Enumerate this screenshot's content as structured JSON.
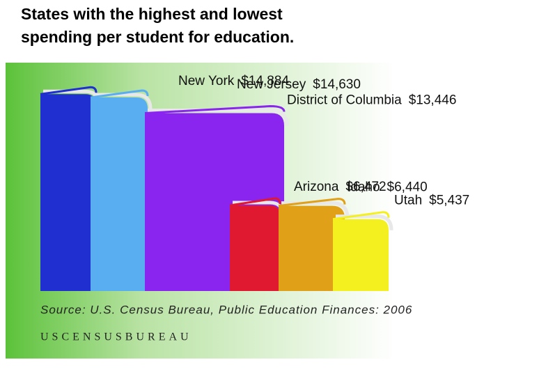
{
  "chart_data": {
    "type": "book",
    "title": "States with the highest and lowest spending per student for education.",
    "categories": [
      "New York",
      "New Jersey",
      "District of Columbia",
      "Arizona",
      "Idaho",
      "Utah"
    ],
    "values": [
      14884,
      14630,
      13446,
      6472,
      6440,
      5437
    ],
    "value_labels": [
      "$14,884",
      "$14,630",
      "$13,446",
      "$6,472",
      "$6,440",
      "$5,437"
    ],
    "colors": [
      "#1f2fd0",
      "#59aef2",
      "#8a25f0",
      "#e01830",
      "#e0a018",
      "#f4f020"
    ],
    "source": "Source: U.S. Census Bureau, Public Education Finances: 2006",
    "logo": "USCENSUSBUREAU"
  }
}
